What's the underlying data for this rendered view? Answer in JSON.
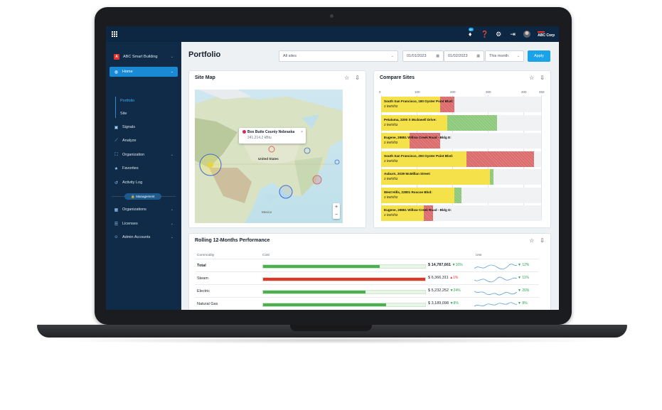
{
  "topbar": {
    "notifications_count": "9+",
    "brand": "ABC Corp",
    "icons": [
      "grid-icon",
      "bell-icon",
      "help-icon",
      "gear-icon",
      "logout-icon",
      "avatar"
    ]
  },
  "sidebar": {
    "building": "ABC Smart Building",
    "logo_letter": "A",
    "items": [
      {
        "label": "Home",
        "icon": "globe-icon",
        "active": true
      },
      {
        "label": "Portfolio",
        "sub": true,
        "selected": true
      },
      {
        "label": "Site",
        "sub": true
      },
      {
        "label": "Signals",
        "icon": "signal-icon"
      },
      {
        "label": "Analyze",
        "icon": "chart-icon"
      },
      {
        "label": "Organization",
        "icon": "org-icon"
      },
      {
        "label": "Favorites",
        "icon": "star-icon"
      },
      {
        "label": "Activity Log",
        "icon": "history-icon"
      }
    ],
    "management_badge": "Management",
    "mgmt_items": [
      {
        "label": "Organizations",
        "icon": "building-icon"
      },
      {
        "label": "Licenses",
        "icon": "license-icon"
      },
      {
        "label": "Admin Accounts",
        "icon": "user-icon"
      }
    ]
  },
  "header": {
    "title": "Portfolio",
    "sites_select": "All sites",
    "date_from": "01/01/2023",
    "date_to": "01/02/2023",
    "period": "This month",
    "apply": "Apply"
  },
  "site_map": {
    "title": "Site Map",
    "popup_name": "Box Butte County Nebraska",
    "popup_value": "241,214.2 kBtu",
    "labels": [
      "United States",
      "Mexico"
    ],
    "zoom_in": "+",
    "zoom_out": "−"
  },
  "compare_sites": {
    "title": "Compare Sites",
    "axis_ticks": [
      "0",
      "100",
      "200",
      "300",
      "400",
      "450"
    ],
    "rows": [
      {
        "name": "South San Francisco, 180 Oyster Point Blvd:",
        "unit": "2 kWh/ft2",
        "yellow": 165,
        "red": 40,
        "green": 0
      },
      {
        "name": "Petaluma, 2200 S Mcdowell Drive:",
        "unit": "2 kWh/ft2",
        "yellow": 185,
        "red": 0,
        "green": 140
      },
      {
        "name": "Eugene, 29851 Willow Creek Road - Bldg E:",
        "unit": "2 kWh/ft2",
        "yellow": 80,
        "red": 85,
        "green": 0
      },
      {
        "name": "South San Francisco, 200 Oyster Point Blvd:",
        "unit": "2 kWh/ft2",
        "yellow": 240,
        "red": 190,
        "green": 0
      },
      {
        "name": "Auburn, 2039 McMillan Street:",
        "unit": "2 kWh/ft2",
        "yellow": 305,
        "red": 0,
        "green": 10
      },
      {
        "name": "West Hills, 22801 Roscoe Blvd:",
        "unit": "2 kWh/ft2",
        "yellow": 205,
        "red": 0,
        "green": 20
      },
      {
        "name": "Eugene, 29851 Willow Creek Road - Bldg D:",
        "unit": "2 kWh/ft2",
        "yellow": 120,
        "red": 25,
        "green": 0
      }
    ]
  },
  "performance": {
    "title": "Rolling 12-Months Performance",
    "col_commodity": "Commodity",
    "col_cost": "Cost",
    "col_use": "Use",
    "rows": [
      {
        "name": "Total",
        "bold": true,
        "fill": 0.72,
        "color": "#4caf50",
        "cost": "$ 14,787,661",
        "cost_trend": "▼16%",
        "cost_dir": "down",
        "use_trend": "▼ 12%",
        "use_dir": "down"
      },
      {
        "name": "Steam",
        "bold": false,
        "fill": 1.0,
        "color": "#e8312b",
        "cost": "$ 6,366,311",
        "cost_trend": "▲1%",
        "cost_dir": "up",
        "use_trend": "▼ 11%",
        "use_dir": "down"
      },
      {
        "name": "Electric",
        "bold": false,
        "fill": 0.63,
        "color": "#4caf50",
        "cost": "$ 5,232,252",
        "cost_trend": "▼24%",
        "cost_dir": "down",
        "use_trend": "▼ 26%",
        "use_dir": "down"
      },
      {
        "name": "Natural Gas",
        "bold": false,
        "fill": 0.76,
        "color": "#4caf50",
        "cost": "$ 3,189,098",
        "cost_trend": "▼8%",
        "cost_dir": "down",
        "use_trend": "▼ 8%",
        "use_dir": "down"
      }
    ]
  },
  "colors": {
    "navy": "#0f2b47",
    "accent": "#1aa3e8",
    "yellow": "#f5e24a",
    "red": "#dd6a6a",
    "green": "#8cc97a"
  }
}
